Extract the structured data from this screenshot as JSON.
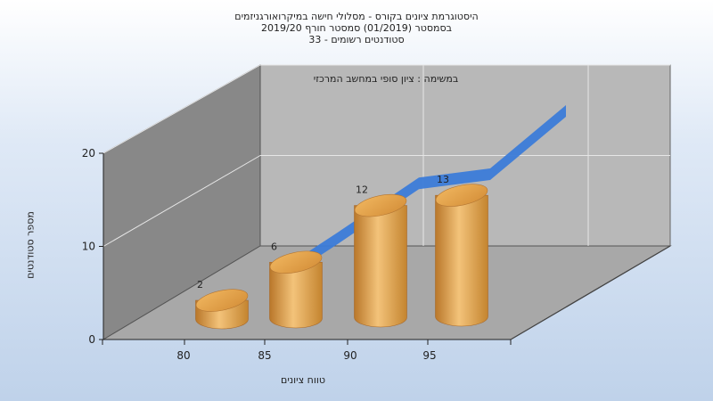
{
  "title_lines": [
    "היסטוגרמת ציונים בקורס - מסלולי חישה במיקרואורגניזמים",
    "בסמסטר  (01/2019)  סמסטר חורף 2019/20",
    "סטודנטים רשומים - 33"
  ],
  "colors": {
    "bar": "#e6a449",
    "line": "#3b7bd8",
    "back_wall": "#b8b8b8",
    "left_wall": "#888888",
    "floor": "#a8a8a8"
  },
  "chart_data": {
    "type": "bar",
    "title": "היסטוגרמת ציונים בקורס - מסלולי חישה במיקרואורגניזמים",
    "annotation": "במשימה : ציון סופי במחשב המרכזי",
    "xlabel": "טווח ציונים",
    "ylabel": "מספר סטודנטים",
    "categories": [
      "80",
      "85",
      "90",
      "95"
    ],
    "values": [
      2,
      6,
      12,
      13
    ],
    "y_ticks": [
      "0",
      "10",
      "20"
    ],
    "ylim": [
      0,
      20
    ],
    "trend_line": [
      2,
      6,
      12,
      13,
      20
    ],
    "grid": true
  }
}
